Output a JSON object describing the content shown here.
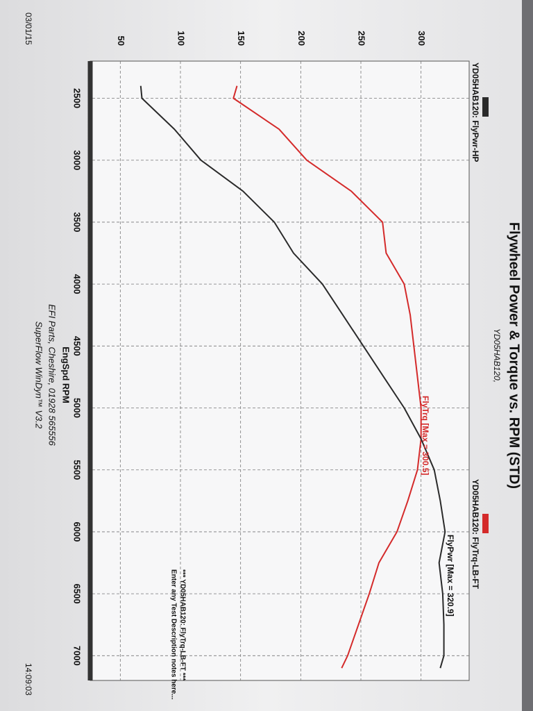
{
  "chart_data": {
    "type": "line",
    "title": "Flywheel Power & Torque vs. RPM (STD)",
    "subtitle": "YD05HAB120,",
    "x_label": "EngSpd RPM",
    "x": [
      2400,
      2500,
      2750,
      3000,
      3250,
      3500,
      3750,
      4000,
      4250,
      4500,
      4750,
      5000,
      5250,
      5500,
      5750,
      6000,
      6250,
      6500,
      6750,
      7000,
      7100
    ],
    "series": [
      {
        "name": "YD05HAB120: FlyTrq-LB-FT",
        "color": "#d42a2a",
        "values": [
          147,
          144,
          182,
          205,
          242,
          268,
          271,
          286,
          291,
          294,
          297,
          300,
          300,
          297,
          289,
          280,
          265,
          257,
          248,
          239,
          234
        ]
      },
      {
        "name": "YD05HAB120: FlyPwr-HP",
        "color": "#2a2a2a",
        "values": [
          67,
          68,
          95,
          117,
          152,
          178,
          194,
          218,
          235,
          252,
          269,
          286,
          300,
          311,
          316,
          320,
          315,
          318,
          319,
          319,
          316
        ]
      }
    ],
    "annotations": [
      "FlyPwr [Max = 320.9]",
      "FlyTrq [Max = 300.5]"
    ],
    "notes": [
      "*** YD05HAB120: FlyTrq-LB-FT ***",
      "Enter any Test Description notes here..."
    ],
    "footer": [
      "EFI Parts, Cheshire, 01928 565556",
      "SuperFlow WinDyn™ V3.2"
    ],
    "date": "03/01/15",
    "time": "14:09:03",
    "xlim": [
      2200,
      7200
    ],
    "xticks": [
      2500,
      3000,
      3500,
      4000,
      4500,
      5000,
      5500,
      6000,
      6500,
      7000
    ],
    "ylim": [
      25,
      340
    ],
    "yticks": [
      50,
      100,
      150,
      200,
      250,
      300
    ],
    "grid": true
  }
}
